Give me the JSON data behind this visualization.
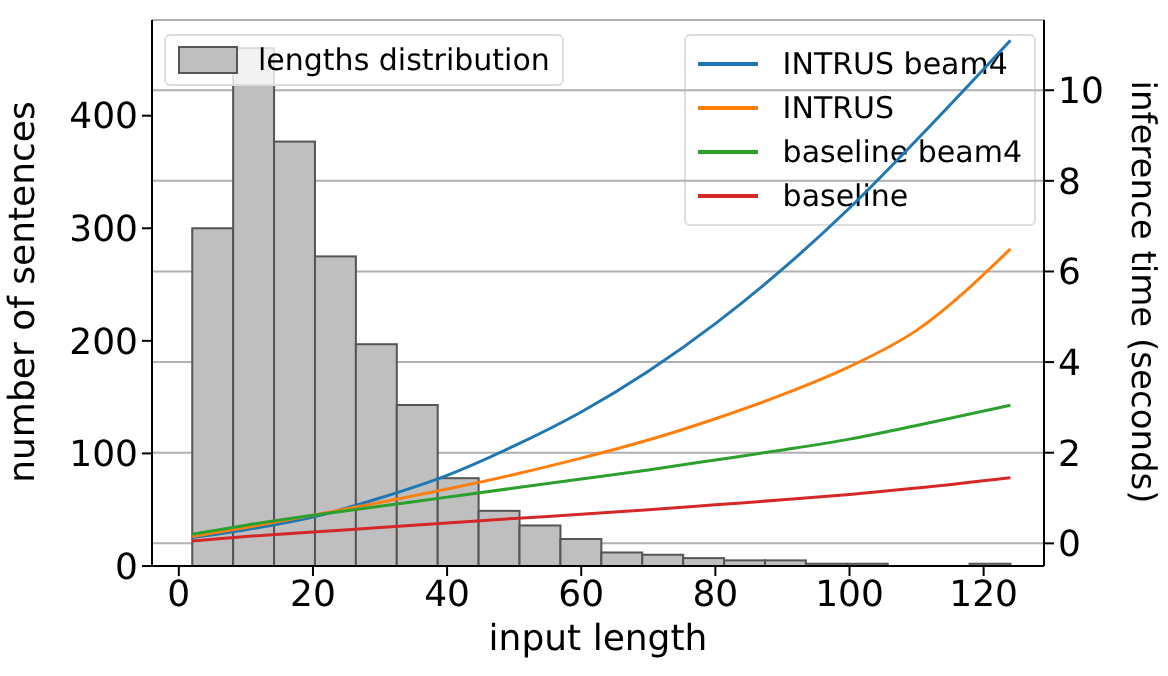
{
  "chart_data": {
    "type": "line",
    "xlabel": "input length",
    "ylabel": "number of sentences",
    "y2label": "inference time (seconds)",
    "xlim": [
      -4,
      129
    ],
    "xticks": [
      0,
      20,
      40,
      60,
      80,
      100,
      120
    ],
    "ylim": [
      0,
      485
    ],
    "yticks": [
      0,
      100,
      200,
      300,
      400
    ],
    "y2lim": [
      -0.5,
      11.55
    ],
    "y2ticks": [
      0,
      2,
      4,
      6,
      8,
      10
    ],
    "grid": "y",
    "legend": "top",
    "marker": "none",
    "line_style": "solid",
    "series": [
      {
        "type": "histogram",
        "name": "lengths distribution",
        "color": "#bfbfbf",
        "bins": [
          2,
          8.1,
          14.2,
          20.3,
          26.4,
          32.5,
          38.6,
          44.7,
          50.8,
          56.9,
          63,
          69.1,
          75.2,
          81.3,
          87.4,
          93.5,
          99.6,
          105.7,
          111.8,
          117.9,
          124
        ],
        "values": [
          300,
          460,
          377,
          275,
          197,
          143,
          78,
          49,
          36,
          24,
          12,
          10,
          7,
          5,
          5,
          2,
          2,
          0,
          0,
          2
        ]
      },
      {
        "type": "line",
        "name": "INTRUS beam4",
        "color": "#1f77b4",
        "axis": "y2",
        "x": [
          2,
          10,
          20,
          30,
          40,
          50,
          60,
          70,
          80,
          90,
          100,
          110,
          124
        ],
        "values": [
          0.13,
          0.3,
          0.58,
          1.0,
          1.5,
          2.15,
          2.9,
          3.8,
          4.85,
          6.05,
          7.4,
          8.9,
          11.1
        ]
      },
      {
        "type": "line",
        "name": "INTRUS",
        "color": "#ff7f0e",
        "axis": "y2",
        "x": [
          2,
          10,
          20,
          30,
          40,
          50,
          60,
          70,
          80,
          90,
          100,
          110,
          124
        ],
        "values": [
          0.15,
          0.35,
          0.62,
          0.9,
          1.2,
          1.52,
          1.88,
          2.28,
          2.75,
          3.28,
          3.9,
          4.7,
          6.5
        ]
      },
      {
        "type": "line",
        "name": "baseline beam4",
        "color": "#2ca02c",
        "axis": "y2",
        "x": [
          2,
          10,
          20,
          30,
          40,
          50,
          60,
          70,
          80,
          90,
          100,
          110,
          124
        ],
        "values": [
          0.2,
          0.4,
          0.62,
          0.82,
          1.02,
          1.22,
          1.42,
          1.62,
          1.84,
          2.06,
          2.3,
          2.6,
          3.05
        ]
      },
      {
        "type": "line",
        "name": "baseline",
        "color": "#d62728",
        "axis": "y2",
        "x": [
          2,
          10,
          20,
          30,
          40,
          50,
          60,
          70,
          80,
          90,
          100,
          110,
          124
        ],
        "values": [
          0.05,
          0.15,
          0.25,
          0.35,
          0.45,
          0.55,
          0.64,
          0.74,
          0.85,
          0.96,
          1.08,
          1.22,
          1.45
        ]
      }
    ]
  }
}
